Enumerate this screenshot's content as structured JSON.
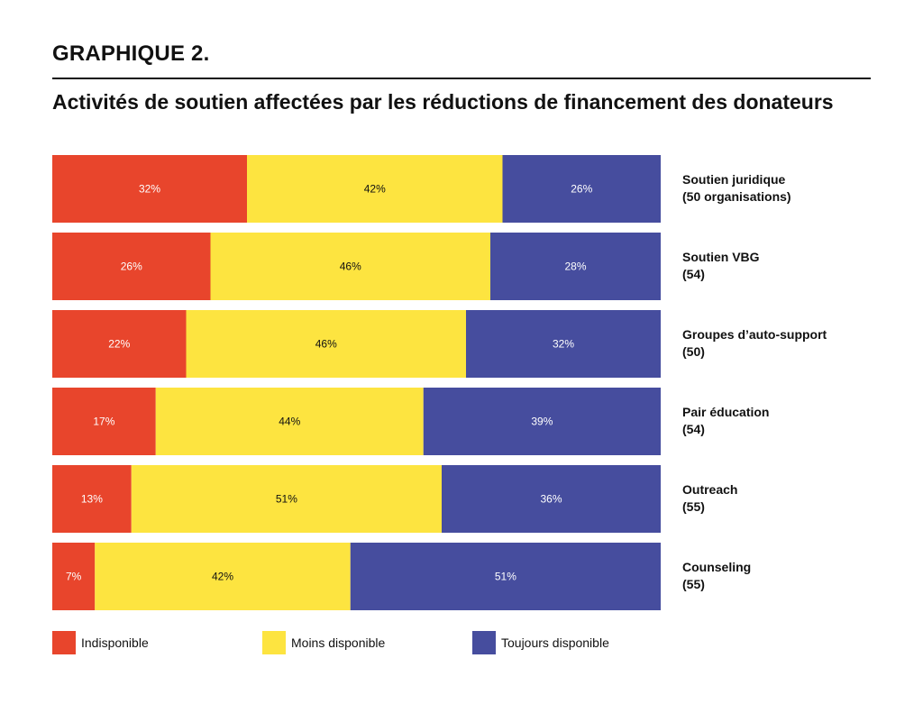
{
  "header": {
    "heading": "GRAPHIQUE 2.",
    "title": "Activités de soutien affectées par les réductions de financement des donateurs"
  },
  "chart_data": {
    "type": "bar",
    "orientation": "horizontal",
    "stacked": true,
    "percent_format": "%",
    "categories": [
      {
        "name": "Soutien juridique",
        "detail": "(50 organisations)"
      },
      {
        "name": "Soutien VBG",
        "detail": "(54)"
      },
      {
        "name": "Groupes d’auto-support",
        "detail": "(50)"
      },
      {
        "name": "Pair éducation",
        "detail": "(54)"
      },
      {
        "name": "Outreach",
        "detail": "(55)"
      },
      {
        "name": "Counseling",
        "detail": "(55)"
      }
    ],
    "series": [
      {
        "name": "Indisponible",
        "color": "#e8452c",
        "values": [
          32,
          26,
          22,
          17,
          13,
          7
        ]
      },
      {
        "name": "Moins disponible",
        "color": "#fde440",
        "values": [
          42,
          46,
          46,
          44,
          51,
          42
        ]
      },
      {
        "name": "Toujours disponible",
        "color": "#464d9e",
        "values": [
          26,
          28,
          32,
          39,
          36,
          51
        ]
      }
    ],
    "xlim": [
      0,
      100
    ],
    "legend_position": "bottom",
    "grid": false
  }
}
